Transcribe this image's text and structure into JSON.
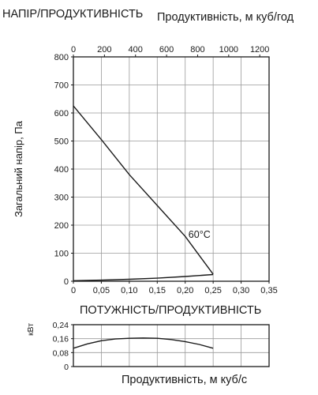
{
  "header": {
    "main_title": "НАПІР/ПРОДУКТИВНІСТЬ",
    "top_axis_title": "Продуктивність, м куб/год",
    "power_title": "ПОТУЖНІСТЬ/ПРОДУКТИВНІСТЬ",
    "bottom_axis_title": "Продуктивність, м куб/с"
  },
  "chart_data": [
    {
      "type": "line",
      "title": "НАПІР/ПРОДУКТИВНІСТЬ",
      "xlabel": "Продуктивність, м куб/год",
      "ylabel": "Загальний напір, Па",
      "xlim": [
        0,
        0.35
      ],
      "ylim": [
        0,
        800
      ],
      "x_ticks": [
        "0",
        "0,05",
        "0,10",
        "0,15",
        "0,20",
        "0,25",
        "0,30",
        "0,35"
      ],
      "top_x_ticks": [
        "0",
        "200",
        "400",
        "600",
        "800",
        "1000",
        "1200"
      ],
      "top_xlim": [
        0,
        1260
      ],
      "y_ticks": [
        "0",
        "100",
        "200",
        "300",
        "400",
        "500",
        "600",
        "700",
        "800"
      ],
      "grid": true,
      "series": [
        {
          "name": "60°C",
          "x": [
            0,
            0.05,
            0.1,
            0.15,
            0.2,
            0.25
          ],
          "y": [
            625,
            505,
            380,
            270,
            160,
            25
          ]
        },
        {
          "name": "",
          "x": [
            0,
            0.05,
            0.1,
            0.15,
            0.2,
            0.25
          ],
          "y": [
            2,
            4,
            7,
            11,
            17,
            24
          ]
        }
      ],
      "annotations": [
        {
          "text": "60°C",
          "x": 0.21,
          "y": 155
        }
      ]
    },
    {
      "type": "line",
      "title": "ПОТУЖНІСТЬ/ПРОДУКТИВНІСТЬ",
      "xlabel": "Продуктивність, м куб/с",
      "ylabel": "кВт",
      "xlim": [
        0,
        0.35
      ],
      "ylim": [
        0,
        0.24
      ],
      "y_ticks": [
        "0",
        "0,08",
        "0,16",
        "0,24"
      ],
      "grid": true,
      "series": [
        {
          "name": "",
          "x": [
            0,
            0.025,
            0.05,
            0.075,
            0.1,
            0.125,
            0.15,
            0.175,
            0.2,
            0.225,
            0.25
          ],
          "y": [
            0.105,
            0.13,
            0.148,
            0.158,
            0.162,
            0.164,
            0.162,
            0.155,
            0.143,
            0.127,
            0.105
          ]
        }
      ]
    }
  ]
}
